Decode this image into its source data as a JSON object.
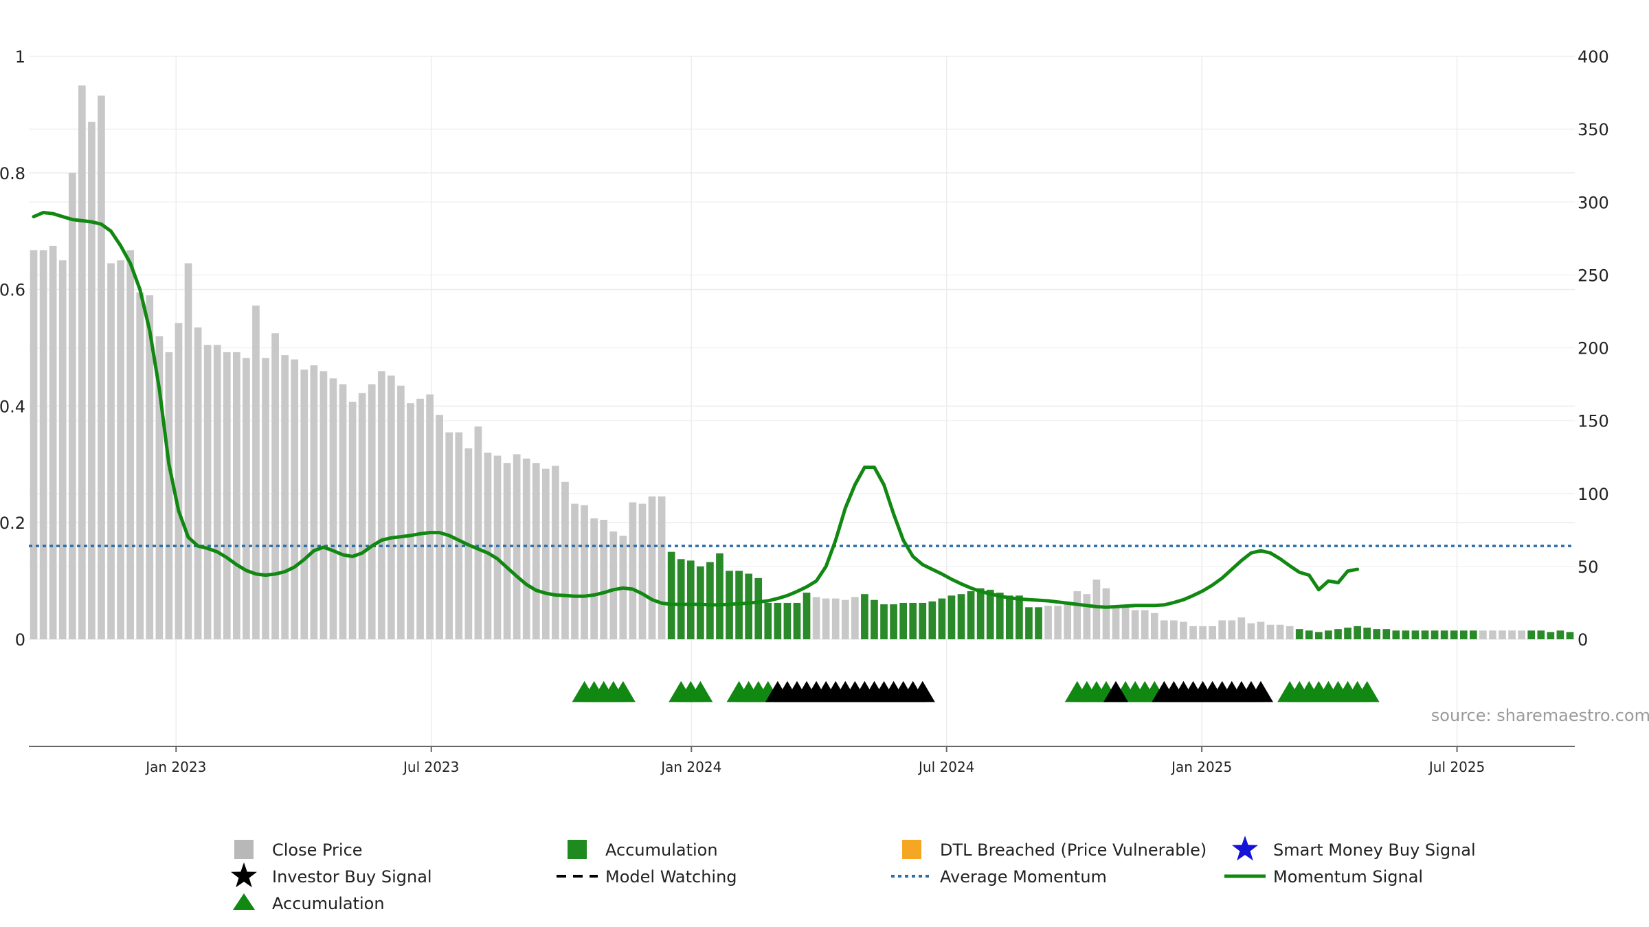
{
  "chart_data": {
    "type": "bar",
    "source": "source: sharemaestro.com",
    "y_left_ticks": [
      "0",
      "0.2",
      "0.4",
      "0.6",
      "0.8",
      "1"
    ],
    "y_left_range": [
      0,
      1
    ],
    "y_right_ticks": [
      "0",
      "50",
      "100",
      "150",
      "200",
      "250",
      "300",
      "350",
      "400"
    ],
    "y_right_range": [
      0,
      400
    ],
    "x_ticks": [
      {
        "label": "Jan 2023",
        "x": 15
      },
      {
        "label": "Jul 2023",
        "x": 41
      },
      {
        "label": "Jan 2024",
        "x": 67.5
      },
      {
        "label": "Jul 2024",
        "x": 93.5
      },
      {
        "label": "Jan 2025",
        "x": 119.5
      },
      {
        "label": "Jul 2025",
        "x": 145.5
      }
    ],
    "x_range": [
      0,
      157.5
    ],
    "average_momentum": 0.16,
    "series": [
      {
        "name": "Close Price",
        "axis": "right",
        "color": "#c8c8c8",
        "values": [
          267,
          267,
          270,
          260,
          320,
          380,
          355,
          373,
          258,
          260,
          267,
          238,
          236,
          208,
          197,
          217,
          258,
          214,
          202,
          202,
          197,
          197,
          193,
          229,
          193,
          210,
          195,
          192,
          185,
          188,
          184,
          179,
          175,
          163,
          169,
          175,
          184,
          181,
          174,
          162,
          165,
          168,
          154,
          142,
          142,
          131,
          146,
          128,
          126,
          121,
          127,
          124,
          121,
          117,
          119,
          108,
          93,
          92,
          83,
          82,
          74,
          71,
          94,
          93,
          98,
          98,
          60,
          55,
          54,
          50,
          53,
          59,
          47,
          47,
          45,
          42,
          25,
          25,
          25,
          25,
          32,
          29,
          28,
          28,
          27,
          29,
          31,
          27,
          24,
          24,
          25,
          25,
          25,
          26,
          28,
          30,
          31,
          33,
          35,
          34,
          32,
          30,
          30,
          22,
          22,
          23,
          23,
          24,
          33,
          31,
          41,
          35,
          23,
          23,
          20,
          20,
          18,
          13,
          13,
          12,
          9,
          9,
          9,
          13,
          13,
          15,
          11,
          12,
          10,
          10,
          9,
          7,
          6,
          5,
          6,
          7,
          8,
          9,
          8,
          7,
          7,
          6,
          6,
          6,
          6,
          6,
          6,
          6,
          6,
          6,
          6,
          6,
          6,
          6,
          6,
          6,
          6,
          5,
          6,
          5
        ]
      },
      {
        "name": "Accumulation",
        "color": "#2a8a2a",
        "bars": [
          [
            66,
            75
          ],
          [
            76,
            80
          ],
          [
            86,
            104
          ],
          [
            131,
            149
          ],
          [
            155,
            159
          ]
        ]
      },
      {
        "name": "Momentum Signal",
        "axis": "left",
        "color": "#118811",
        "points": [
          [
            0,
            0.725
          ],
          [
            1,
            0.732
          ],
          [
            2,
            0.73
          ],
          [
            3,
            0.725
          ],
          [
            4,
            0.72
          ],
          [
            5,
            0.718
          ],
          [
            6,
            0.716
          ],
          [
            7,
            0.712
          ],
          [
            8,
            0.7
          ],
          [
            9,
            0.675
          ],
          [
            10,
            0.645
          ],
          [
            11,
            0.6
          ],
          [
            12,
            0.53
          ],
          [
            13,
            0.43
          ],
          [
            14,
            0.3
          ],
          [
            15,
            0.22
          ],
          [
            16,
            0.175
          ],
          [
            17,
            0.16
          ],
          [
            18,
            0.156
          ],
          [
            19,
            0.15
          ],
          [
            20,
            0.14
          ],
          [
            21,
            0.128
          ],
          [
            22,
            0.118
          ],
          [
            23,
            0.112
          ],
          [
            24,
            0.11
          ],
          [
            25,
            0.112
          ],
          [
            26,
            0.116
          ],
          [
            27,
            0.124
          ],
          [
            28,
            0.137
          ],
          [
            29,
            0.152
          ],
          [
            30,
            0.158
          ],
          [
            31,
            0.152
          ],
          [
            32,
            0.145
          ],
          [
            33,
            0.142
          ],
          [
            34,
            0.148
          ],
          [
            35,
            0.16
          ],
          [
            36,
            0.17
          ],
          [
            37,
            0.174
          ],
          [
            38,
            0.176
          ],
          [
            39,
            0.178
          ],
          [
            40,
            0.181
          ],
          [
            41,
            0.183
          ],
          [
            42,
            0.183
          ],
          [
            43,
            0.178
          ],
          [
            44,
            0.17
          ],
          [
            45,
            0.162
          ],
          [
            46,
            0.155
          ],
          [
            47,
            0.148
          ],
          [
            48,
            0.138
          ],
          [
            49,
            0.123
          ],
          [
            50,
            0.108
          ],
          [
            51,
            0.094
          ],
          [
            52,
            0.084
          ],
          [
            53,
            0.079
          ],
          [
            54,
            0.076
          ],
          [
            55,
            0.075
          ],
          [
            56,
            0.074
          ],
          [
            57,
            0.074
          ],
          [
            58,
            0.076
          ],
          [
            59,
            0.08
          ],
          [
            60,
            0.085
          ],
          [
            61,
            0.088
          ],
          [
            62,
            0.086
          ],
          [
            63,
            0.078
          ],
          [
            64,
            0.068
          ],
          [
            65,
            0.062
          ],
          [
            66,
            0.06
          ],
          [
            67,
            0.06
          ],
          [
            68,
            0.06
          ],
          [
            69,
            0.06
          ],
          [
            70,
            0.059
          ],
          [
            71,
            0.059
          ],
          [
            72,
            0.06
          ],
          [
            73,
            0.061
          ],
          [
            74,
            0.062
          ],
          [
            75,
            0.064
          ],
          [
            76,
            0.066
          ],
          [
            77,
            0.07
          ],
          [
            78,
            0.075
          ],
          [
            79,
            0.082
          ],
          [
            80,
            0.09
          ],
          [
            81,
            0.1
          ],
          [
            82,
            0.125
          ],
          [
            83,
            0.17
          ],
          [
            84,
            0.225
          ],
          [
            85,
            0.265
          ],
          [
            86,
            0.295
          ],
          [
            87,
            0.295
          ],
          [
            88,
            0.265
          ],
          [
            89,
            0.215
          ],
          [
            90,
            0.17
          ],
          [
            91,
            0.142
          ],
          [
            92,
            0.128
          ],
          [
            93,
            0.12
          ],
          [
            94,
            0.112
          ],
          [
            95,
            0.103
          ],
          [
            96,
            0.095
          ],
          [
            97,
            0.088
          ],
          [
            98,
            0.082
          ],
          [
            99,
            0.078
          ],
          [
            100,
            0.074
          ],
          [
            101,
            0.071
          ],
          [
            102,
            0.069
          ],
          [
            103,
            0.068
          ],
          [
            104,
            0.067
          ],
          [
            105,
            0.066
          ],
          [
            106,
            0.064
          ],
          [
            107,
            0.062
          ],
          [
            108,
            0.06
          ],
          [
            109,
            0.058
          ],
          [
            110,
            0.056
          ],
          [
            111,
            0.055
          ],
          [
            112,
            0.056
          ],
          [
            113,
            0.057
          ],
          [
            114,
            0.058
          ],
          [
            115,
            0.058
          ],
          [
            116,
            0.058
          ],
          [
            117,
            0.059
          ],
          [
            118,
            0.063
          ],
          [
            119,
            0.068
          ],
          [
            120,
            0.075
          ],
          [
            121,
            0.083
          ],
          [
            122,
            0.093
          ],
          [
            123,
            0.105
          ],
          [
            124,
            0.12
          ],
          [
            125,
            0.135
          ],
          [
            126,
            0.148
          ],
          [
            127,
            0.152
          ],
          [
            128,
            0.148
          ],
          [
            129,
            0.138
          ],
          [
            130,
            0.126
          ],
          [
            131,
            0.115
          ],
          [
            132,
            0.11
          ],
          [
            133,
            0.085
          ],
          [
            134,
            0.1
          ],
          [
            135,
            0.097
          ],
          [
            136,
            0.117
          ],
          [
            137,
            0.12
          ]
        ]
      },
      {
        "name": "Accumulation",
        "marker": "triangle",
        "color": "#118811",
        "points": [
          57,
          58,
          59,
          60,
          61,
          67,
          68,
          69,
          73,
          74,
          75,
          76,
          108,
          109,
          110,
          111,
          113,
          114,
          115,
          116,
          130,
          131,
          132,
          133,
          134,
          135,
          136,
          137,
          138
        ]
      },
      {
        "name": "Investor Buy Signal",
        "marker": "triangle",
        "color": "#000000",
        "points": [
          77,
          78,
          79,
          80,
          81,
          82,
          83,
          84,
          85,
          86,
          87,
          88,
          89,
          90,
          91,
          92,
          112,
          117,
          118,
          119,
          120,
          121,
          122,
          123,
          124,
          125,
          126,
          127
        ]
      }
    ],
    "legend": {
      "placement": "bottom",
      "items": [
        {
          "label": "Close Price",
          "symbol": "square",
          "color": "#b8b8b8"
        },
        {
          "label": "Accumulation",
          "symbol": "square",
          "color": "#1f8a1f"
        },
        {
          "label": "DTL Breached (Price Vulnerable)",
          "symbol": "square",
          "color": "#f5a623"
        },
        {
          "label": "Smart Money Buy Signal",
          "symbol": "star",
          "color": "#1414d9"
        },
        {
          "label": "Investor Buy Signal",
          "symbol": "star",
          "color": "#000000"
        },
        {
          "label": "Model Watching",
          "symbol": "dash",
          "color": "#000000"
        },
        {
          "label": "Average Momentum",
          "symbol": "dotted",
          "color": "#2b6ea8"
        },
        {
          "label": "Momentum Signal",
          "symbol": "line",
          "color": "#118811"
        },
        {
          "label": "Accumulation",
          "symbol": "triangle",
          "color": "#118811"
        }
      ]
    },
    "grid": true
  }
}
